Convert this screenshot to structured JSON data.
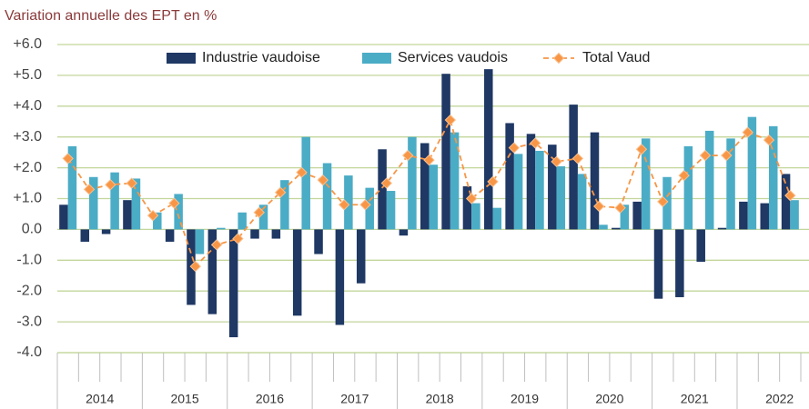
{
  "chart_data": {
    "type": "bar_line",
    "title": "Variation annuelle des EPT  en %",
    "categories": [
      null,
      null,
      null,
      null,
      null,
      null,
      null,
      null,
      null,
      null,
      null,
      null,
      null,
      null,
      null,
      null,
      null,
      null,
      null,
      null,
      null,
      null,
      null,
      null,
      null,
      null,
      null,
      null,
      null,
      null,
      null,
      null,
      null,
      null,
      null
    ],
    "x_groups": [
      "2014",
      "2015",
      "2016",
      "2017",
      "2018",
      "2019",
      "2020",
      "2021",
      "2022"
    ],
    "series": [
      {
        "name": "Industrie vaudoise",
        "kind": "bar",
        "color": "#1f3864",
        "values": [
          0.8,
          -0.4,
          -0.15,
          0.95,
          0.0,
          -0.4,
          -2.45,
          -2.75,
          -3.5,
          -0.3,
          -0.3,
          -2.8,
          -0.8,
          -3.1,
          -1.75,
          2.6,
          -0.2,
          2.8,
          5.05,
          1.4,
          5.2,
          3.45,
          3.1,
          2.75,
          4.05,
          3.15,
          0.05,
          0.9,
          -2.25,
          -2.2,
          -1.05,
          0.05,
          0.9,
          0.85,
          1.8
        ]
      },
      {
        "name": "Services vaudois",
        "kind": "bar",
        "color": "#4bacc6",
        "values": [
          2.7,
          1.7,
          1.85,
          1.65,
          0.55,
          1.15,
          -0.8,
          0.05,
          0.55,
          0.8,
          1.6,
          3.0,
          2.15,
          1.75,
          1.35,
          1.25,
          3.0,
          2.1,
          3.15,
          0.85,
          0.7,
          2.45,
          2.55,
          2.05,
          1.8,
          0.15,
          0.8,
          2.95,
          1.7,
          2.7,
          3.2,
          2.95,
          3.65,
          3.35,
          0.95
        ]
      },
      {
        "name": "Total Vaud",
        "kind": "line",
        "color": "#f79646",
        "values": [
          2.3,
          1.3,
          1.45,
          1.5,
          0.45,
          0.85,
          -1.2,
          -0.5,
          -0.3,
          0.55,
          1.2,
          1.85,
          1.6,
          0.8,
          0.8,
          1.5,
          2.4,
          2.25,
          3.55,
          1.0,
          1.55,
          2.65,
          2.8,
          2.2,
          2.3,
          0.75,
          0.7,
          2.6,
          0.9,
          1.75,
          2.4,
          2.4,
          3.15,
          2.9,
          1.1
        ]
      }
    ],
    "ylim": [
      -4,
      6
    ],
    "yticks": [
      {
        "value": -4,
        "label": "-4.0"
      },
      {
        "value": -3,
        "label": "-3.0"
      },
      {
        "value": -2,
        "label": "-2.0"
      },
      {
        "value": -1,
        "label": "-1.0"
      },
      {
        "value": 0,
        "label": "0.0"
      },
      {
        "value": 1,
        "label": "+1.0"
      },
      {
        "value": 2,
        "label": "+2.0"
      },
      {
        "value": 3,
        "label": "+3.0"
      },
      {
        "value": 4,
        "label": "+4.0"
      },
      {
        "value": 5,
        "label": "+5.0"
      },
      {
        "value": 6,
        "label": "+6.0"
      }
    ],
    "grid": true,
    "legend": "top"
  }
}
